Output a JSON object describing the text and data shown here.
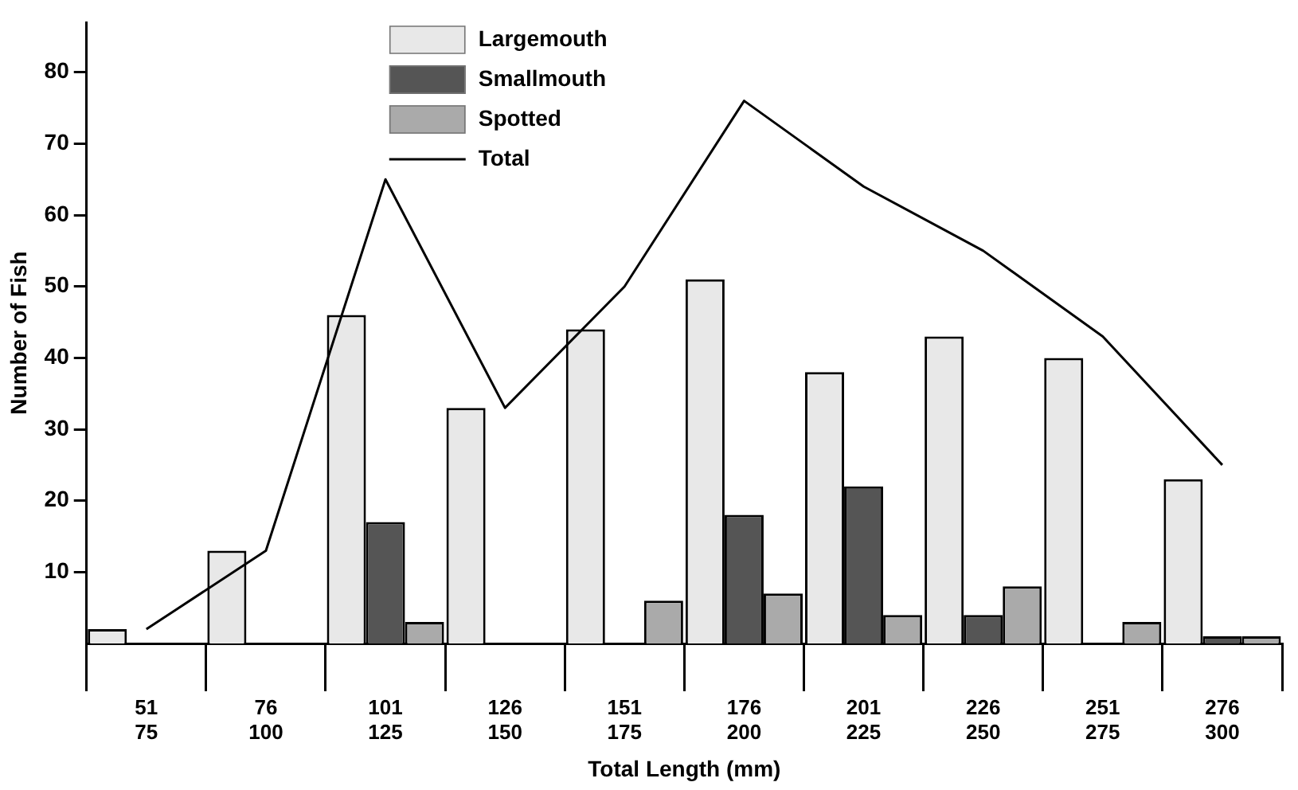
{
  "chart_data": {
    "type": "bar",
    "xlabel": "Total Length (mm)",
    "ylabel": "Number of Fish",
    "categories": [
      "51\n75",
      "76\n100",
      "101\n125",
      "126\n150",
      "151\n175",
      "176\n200",
      "201\n225",
      "226\n250",
      "251\n275",
      "276\n300"
    ],
    "series": [
      {
        "name": "Largemouth",
        "color": "#e8e8e8",
        "values": [
          2,
          13,
          46,
          33,
          44,
          51,
          38,
          43,
          40,
          23
        ]
      },
      {
        "name": "Smallmouth",
        "color": "#555555",
        "values": [
          0,
          0,
          17,
          0,
          0,
          18,
          22,
          4,
          0,
          1
        ]
      },
      {
        "name": "Spotted",
        "color": "#aaaaaa",
        "values": [
          0,
          0,
          3,
          0,
          6,
          7,
          4,
          8,
          3,
          1
        ]
      },
      {
        "name": "Total",
        "type": "line",
        "color": "#000000",
        "values": [
          2,
          13,
          65,
          33,
          50,
          76,
          64,
          55,
          43,
          25
        ]
      }
    ],
    "ylim": [
      0,
      87
    ],
    "yticks": [
      10,
      20,
      30,
      40,
      50,
      60,
      70,
      80
    ],
    "grid": false,
    "legend": "top left",
    "marker": "none",
    "line_style": "solid"
  }
}
